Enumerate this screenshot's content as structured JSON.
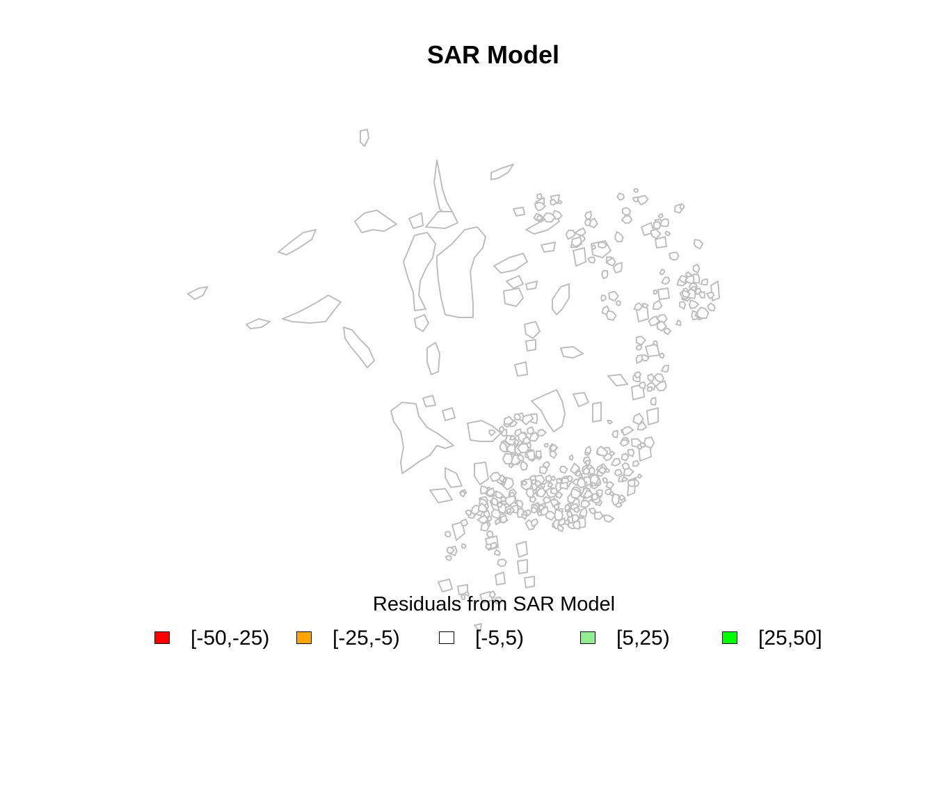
{
  "title": "SAR Model",
  "legend": {
    "title": "Residuals from SAR Model",
    "items": [
      {
        "label": "[-50,-25)",
        "color": "#ff0000"
      },
      {
        "label": "[-25,-5)",
        "color": "#ffa500"
      },
      {
        "label": "[-5,5)",
        "color": "#ffffff"
      },
      {
        "label": "[5,25)",
        "color": "#90ee90"
      },
      {
        "label": "[25,50]",
        "color": "#00ff00"
      }
    ]
  },
  "map": {
    "boundary_color": "#bebebe",
    "fill_color": "#ffffff"
  }
}
